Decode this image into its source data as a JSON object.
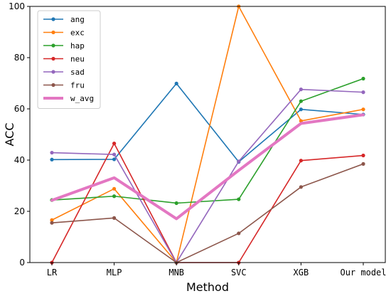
{
  "chart_data": {
    "type": "line",
    "title": "",
    "xlabel": "Method",
    "ylabel": "ACC",
    "ylim": [
      0,
      100
    ],
    "yticks": [
      0,
      20,
      40,
      60,
      80,
      100
    ],
    "categories": [
      "LR",
      "MLP",
      "MNB",
      "SVC",
      "XGB",
      "Our model"
    ],
    "legend_position": "top-left",
    "grid": false,
    "series": [
      {
        "name": "ang",
        "color": "#1f77b4",
        "values": [
          40.2,
          40.3,
          69.9,
          39.3,
          59.8,
          57.8
        ],
        "emphasis": false
      },
      {
        "name": "exc",
        "color": "#ff7f0e",
        "values": [
          16.6,
          28.8,
          0.0,
          100.0,
          55.3,
          59.8
        ],
        "emphasis": false
      },
      {
        "name": "hap",
        "color": "#2ca02c",
        "values": [
          24.4,
          25.9,
          23.2,
          24.7,
          63.0,
          71.8
        ],
        "emphasis": false
      },
      {
        "name": "neu",
        "color": "#d62728",
        "values": [
          0.0,
          46.5,
          0.0,
          0.0,
          39.8,
          41.8
        ],
        "emphasis": false
      },
      {
        "name": "sad",
        "color": "#9467bd",
        "values": [
          42.9,
          42.2,
          0.0,
          39.5,
          67.6,
          66.5
        ],
        "emphasis": false
      },
      {
        "name": "fru",
        "color": "#8c564b",
        "values": [
          15.5,
          17.4,
          0.0,
          11.4,
          29.5,
          38.5
        ],
        "emphasis": false
      },
      {
        "name": "w_avg",
        "color": "#e377c2",
        "values": [
          24.3,
          33.1,
          17.1,
          36.0,
          54.3,
          57.7
        ],
        "emphasis": true
      }
    ]
  }
}
